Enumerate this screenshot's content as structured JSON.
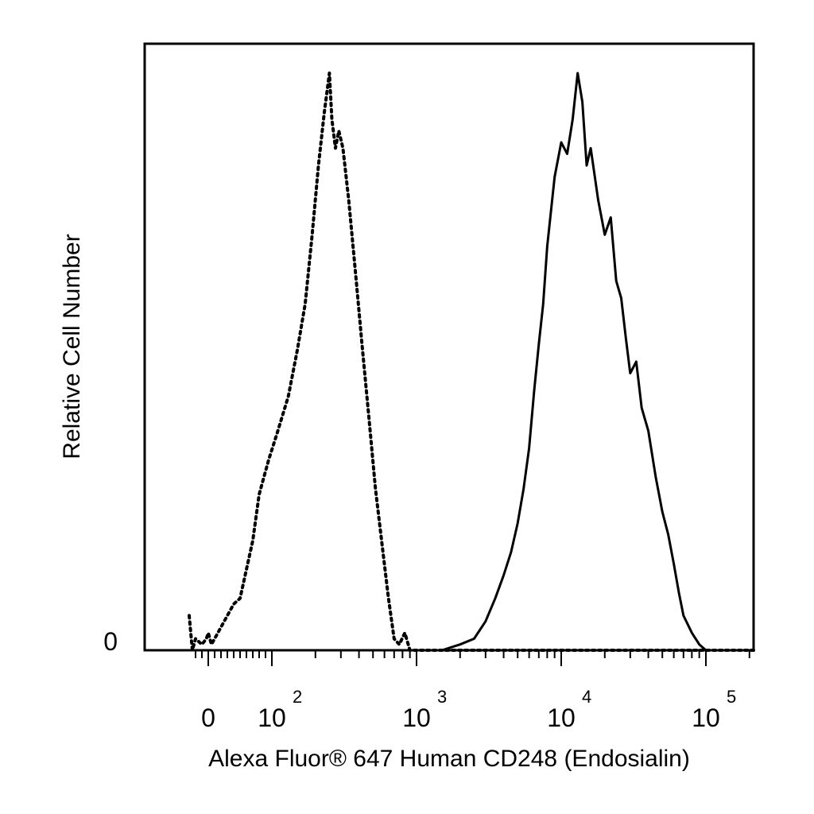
{
  "chart_data": {
    "type": "line",
    "title": "",
    "xlabel": "Alexa Fluor® 647 Human CD248 (Endosialin)",
    "ylabel": "Relative Cell Number",
    "x_scale": "biexponential",
    "xlim": [
      -30,
      250000
    ],
    "ylim": [
      0,
      1
    ],
    "y_ticks": [
      {
        "value": 0,
        "label": "0"
      }
    ],
    "x_ticks": [
      {
        "value": 0,
        "base": "0",
        "exp": ""
      },
      {
        "value": 100,
        "base": "10",
        "exp": "2"
      },
      {
        "value": 1000,
        "base": "10",
        "exp": "3"
      },
      {
        "value": 10000,
        "base": "10",
        "exp": "4"
      },
      {
        "value": 100000,
        "base": "10",
        "exp": "5"
      }
    ],
    "grid": false,
    "legend": "none",
    "series": [
      {
        "style": "dotted",
        "points": [
          [
            -30,
            0.06
          ],
          [
            -25,
            0.0
          ],
          [
            -20,
            0.02
          ],
          [
            -10,
            0.01
          ],
          [
            -3,
            0.02
          ],
          [
            0,
            0.03
          ],
          [
            5,
            0.01
          ],
          [
            10,
            0.02
          ],
          [
            20,
            0.04
          ],
          [
            30,
            0.06
          ],
          [
            40,
            0.08
          ],
          [
            50,
            0.09
          ],
          [
            60,
            0.14
          ],
          [
            70,
            0.19
          ],
          [
            80,
            0.27
          ],
          [
            95,
            0.33
          ],
          [
            110,
            0.38
          ],
          [
            130,
            0.44
          ],
          [
            150,
            0.52
          ],
          [
            170,
            0.6
          ],
          [
            190,
            0.72
          ],
          [
            210,
            0.84
          ],
          [
            230,
            0.93
          ],
          [
            250,
            1.0
          ],
          [
            260,
            0.92
          ],
          [
            275,
            0.87
          ],
          [
            290,
            0.9
          ],
          [
            310,
            0.87
          ],
          [
            340,
            0.78
          ],
          [
            380,
            0.65
          ],
          [
            420,
            0.53
          ],
          [
            470,
            0.4
          ],
          [
            520,
            0.28
          ],
          [
            580,
            0.18
          ],
          [
            640,
            0.09
          ],
          [
            700,
            0.02
          ],
          [
            760,
            0.01
          ],
          [
            830,
            0.03
          ],
          [
            900,
            0.0
          ],
          [
            1000,
            0.0
          ],
          [
            250000,
            0.0
          ]
        ]
      },
      {
        "style": "solid",
        "points": [
          [
            1000,
            0.0
          ],
          [
            1500,
            0.0
          ],
          [
            2000,
            0.01
          ],
          [
            2500,
            0.02
          ],
          [
            3000,
            0.05
          ],
          [
            3500,
            0.09
          ],
          [
            4000,
            0.13
          ],
          [
            4500,
            0.17
          ],
          [
            5000,
            0.22
          ],
          [
            5500,
            0.28
          ],
          [
            6000,
            0.35
          ],
          [
            6500,
            0.45
          ],
          [
            7000,
            0.53
          ],
          [
            7500,
            0.6
          ],
          [
            8000,
            0.7
          ],
          [
            9000,
            0.82
          ],
          [
            10000,
            0.88
          ],
          [
            11000,
            0.86
          ],
          [
            12000,
            0.92
          ],
          [
            13000,
            1.0
          ],
          [
            14000,
            0.95
          ],
          [
            15000,
            0.84
          ],
          [
            16000,
            0.87
          ],
          [
            18000,
            0.78
          ],
          [
            20000,
            0.72
          ],
          [
            22000,
            0.75
          ],
          [
            24000,
            0.64
          ],
          [
            26000,
            0.61
          ],
          [
            28000,
            0.54
          ],
          [
            30000,
            0.48
          ],
          [
            33000,
            0.5
          ],
          [
            36000,
            0.42
          ],
          [
            40000,
            0.38
          ],
          [
            45000,
            0.3
          ],
          [
            50000,
            0.24
          ],
          [
            55000,
            0.2
          ],
          [
            60000,
            0.15
          ],
          [
            65000,
            0.1
          ],
          [
            70000,
            0.06
          ],
          [
            80000,
            0.03
          ],
          [
            90000,
            0.01
          ],
          [
            100000,
            0.0
          ],
          [
            250000,
            0.0
          ]
        ]
      }
    ]
  }
}
